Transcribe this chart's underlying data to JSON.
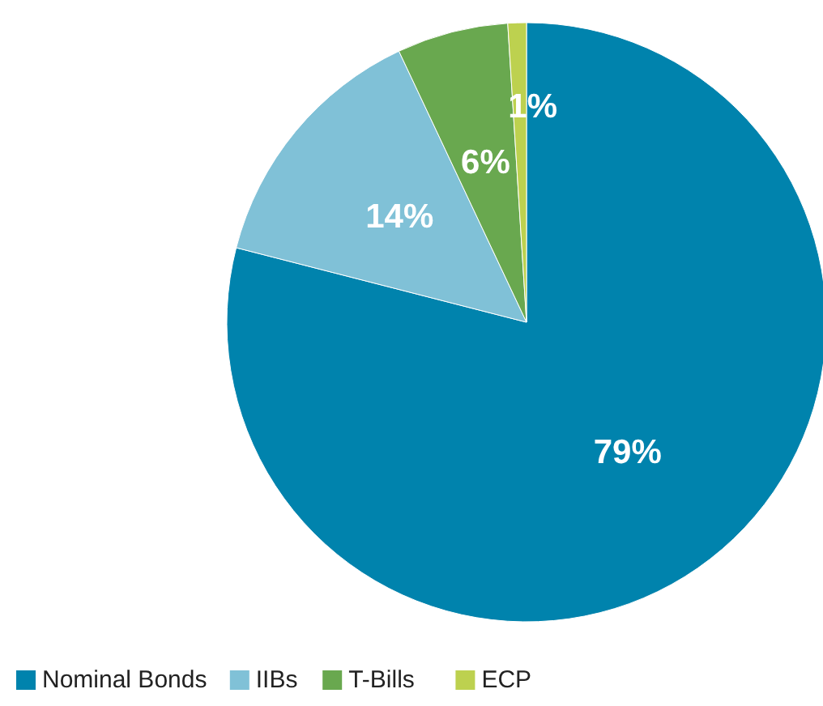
{
  "chart_data": {
    "type": "pie",
    "categories": [
      "Nominal Bonds",
      "IIBs",
      "T-Bills",
      "ECP"
    ],
    "values": [
      79,
      14,
      6,
      1
    ],
    "colors": [
      "#0083ad",
      "#80c1d7",
      "#69a84f",
      "#bdd14f"
    ],
    "value_labels": [
      "79%",
      "14%",
      "6%",
      "1%"
    ],
    "legend": "bottom left"
  }
}
